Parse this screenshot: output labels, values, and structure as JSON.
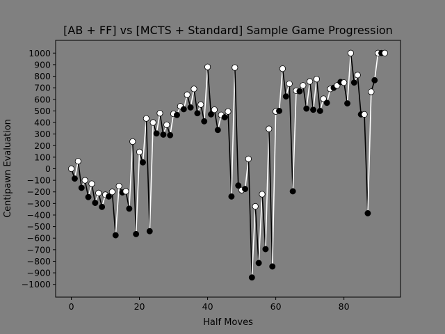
{
  "chart_data": {
    "type": "line",
    "title": "[AB + FF] vs [MCTS + Standard] Sample Game Progression",
    "xlabel": "Half Moves",
    "ylabel": "Centipawn Evaluation",
    "xlim": [
      -4.6,
      96.6
    ],
    "ylim": [
      -1110,
      1110
    ],
    "xticks": [
      0,
      20,
      40,
      60,
      80
    ],
    "yticks": [
      -1000,
      -900,
      -800,
      -700,
      -600,
      -500,
      -400,
      -300,
      -200,
      -100,
      0,
      100,
      200,
      300,
      400,
      500,
      600,
      700,
      800,
      900,
      1000
    ],
    "grid": false,
    "background": "#808080",
    "plot_background": "#808080",
    "x": [
      0,
      1,
      2,
      3,
      4,
      5,
      6,
      7,
      8,
      9,
      10,
      11,
      12,
      13,
      14,
      15,
      16,
      17,
      18,
      19,
      20,
      21,
      22,
      23,
      24,
      25,
      26,
      27,
      28,
      29,
      30,
      31,
      32,
      33,
      34,
      35,
      36,
      37,
      38,
      39,
      40,
      41,
      42,
      43,
      44,
      45,
      46,
      47,
      48,
      49,
      50,
      51,
      52,
      53,
      54,
      55,
      56,
      57,
      58,
      59,
      60,
      61,
      62,
      63,
      64,
      65,
      66,
      67,
      68,
      69,
      70,
      71,
      72,
      73,
      74,
      75,
      76,
      77,
      78,
      79,
      80,
      81,
      82,
      83,
      84,
      85,
      86,
      87,
      88,
      89,
      90,
      91,
      92
    ],
    "values": [
      0,
      -85,
      65,
      -165,
      -100,
      -245,
      -130,
      -295,
      -210,
      -330,
      -225,
      -240,
      -200,
      -575,
      -150,
      -205,
      -195,
      -345,
      235,
      -565,
      145,
      55,
      435,
      -540,
      400,
      305,
      480,
      295,
      380,
      290,
      475,
      465,
      540,
      515,
      640,
      530,
      690,
      480,
      555,
      410,
      880,
      470,
      510,
      335,
      465,
      445,
      495,
      -240,
      875,
      -145,
      -185,
      -175,
      85,
      -940,
      -325,
      -815,
      -220,
      -695,
      345,
      -845,
      495,
      500,
      865,
      625,
      735,
      -195,
      675,
      670,
      720,
      520,
      755,
      510,
      775,
      500,
      605,
      570,
      690,
      700,
      720,
      750,
      745,
      565,
      1000,
      745,
      810,
      470,
      470,
      -385,
      665,
      765,
      1000,
      1000,
      1000
    ],
    "colors": {
      "white_move": "#ffffff",
      "black_move": "#000000"
    }
  }
}
